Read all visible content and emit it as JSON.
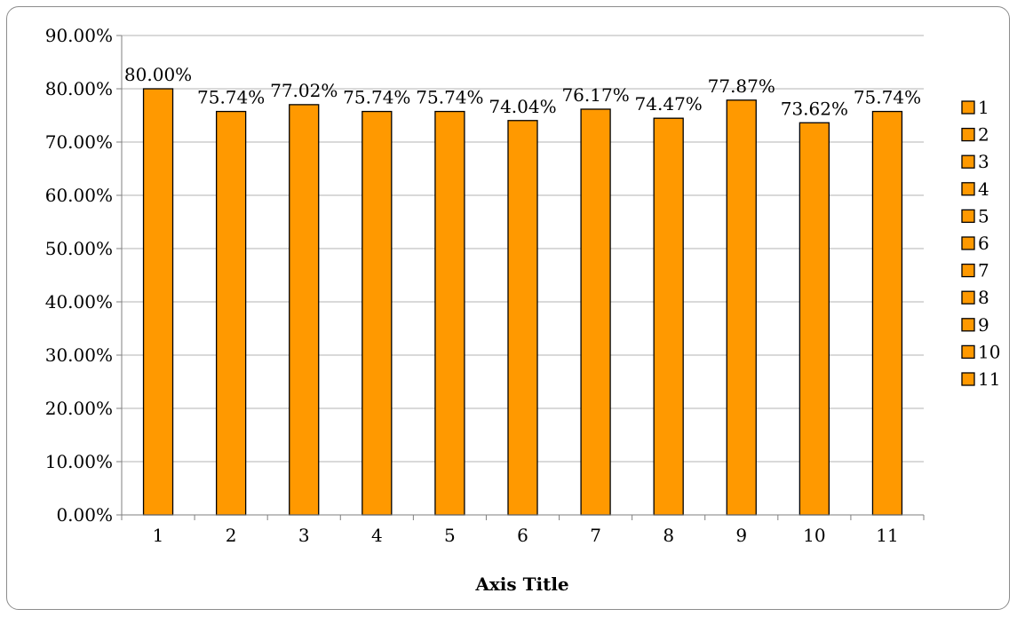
{
  "chart_data": {
    "type": "bar",
    "categories": [
      "1",
      "2",
      "3",
      "4",
      "5",
      "6",
      "7",
      "8",
      "9",
      "10",
      "11"
    ],
    "values": [
      80.0,
      75.74,
      77.02,
      75.74,
      75.74,
      74.04,
      76.17,
      74.47,
      77.87,
      73.62,
      75.74
    ],
    "data_labels": [
      "80.00%",
      "75.74%",
      "77.02%",
      "75.74%",
      "75.74%",
      "74.04%",
      "76.17%",
      "74.47%",
      "77.87%",
      "73.62%",
      "75.74%"
    ],
    "y_ticks": [
      0,
      10,
      20,
      30,
      40,
      50,
      60,
      70,
      80,
      90
    ],
    "y_tick_labels": [
      "0.00%",
      "10.00%",
      "20.00%",
      "30.00%",
      "40.00%",
      "50.00%",
      "60.00%",
      "70.00%",
      "80.00%",
      "90.00%"
    ],
    "ylim": [
      0,
      90
    ],
    "xlabel": "Axis Title",
    "ylabel": "",
    "title": "",
    "grid": true,
    "legend": {
      "placement": "right",
      "entries": [
        "1",
        "2",
        "3",
        "4",
        "5",
        "6",
        "7",
        "8",
        "9",
        "10",
        "11"
      ]
    },
    "colors": {
      "bar_fill": "#FF9900",
      "bar_stroke": "#000000",
      "grid": "#B3B3B3",
      "axis": "#7F7F7F"
    }
  }
}
